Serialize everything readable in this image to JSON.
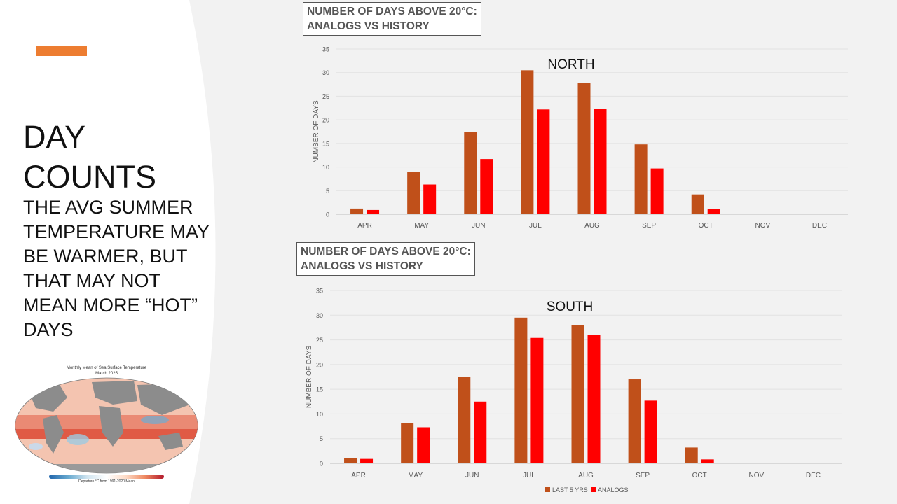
{
  "slide": {
    "title_line1": "DAY",
    "title_line2": "COUNTS",
    "subtitle": "THE AVG SUMMER TEMPERATURE MAY BE WARMER, BUT THAT MAY NOT MEAN MORE “HOT” DAYS",
    "map_title_line1": "Monthly Mean of Sea Surface Temperature",
    "map_title_line2": "March 2025",
    "map_legend_caption": "Departure °C from 1991-2020 Mean",
    "accent_color": "#ed7d31"
  },
  "colors": {
    "last5": "#c0501a",
    "analogs": "#ff0000"
  },
  "chart_data": [
    {
      "type": "bar",
      "header_line1": "NUMBER OF DAYS ABOVE 20°C:",
      "header_line2": "ANALOGS VS HISTORY",
      "title": "NORTH",
      "ylabel": "NUMBER OF DAYS",
      "ylim": [
        0,
        35
      ],
      "yticks": [
        0,
        5,
        10,
        15,
        20,
        25,
        30,
        35
      ],
      "categories": [
        "APR",
        "MAY",
        "JUN",
        "JUL",
        "AUG",
        "SEP",
        "OCT",
        "NOV",
        "DEC"
      ],
      "series": [
        {
          "name": "LAST 5 YRS",
          "values": [
            1.2,
            9,
            17.5,
            30.5,
            27.8,
            14.8,
            4.2,
            0,
            0
          ]
        },
        {
          "name": "ANALOGS",
          "values": [
            0.9,
            6.3,
            11.7,
            22.2,
            22.3,
            9.7,
            1.1,
            0,
            0
          ]
        }
      ]
    },
    {
      "type": "bar",
      "header_line1": "NUMBER OF DAYS ABOVE 20°C:",
      "header_line2": "ANALOGS VS HISTORY",
      "title": "SOUTH",
      "ylabel": "NUMBER OF DAYS",
      "ylim": [
        0,
        35
      ],
      "yticks": [
        0,
        5,
        10,
        15,
        20,
        25,
        30,
        35
      ],
      "categories": [
        "APR",
        "MAY",
        "JUN",
        "JUL",
        "AUG",
        "SEP",
        "OCT",
        "NOV",
        "DEC"
      ],
      "legend": [
        "LAST 5 YRS",
        "ANALOGS"
      ],
      "series": [
        {
          "name": "LAST 5 YRS",
          "values": [
            1,
            8.2,
            17.5,
            29.5,
            28,
            17,
            3.2,
            0,
            0
          ]
        },
        {
          "name": "ANALOGS",
          "values": [
            0.9,
            7.3,
            12.5,
            25.4,
            26,
            12.7,
            0.8,
            0,
            0
          ]
        }
      ]
    }
  ]
}
